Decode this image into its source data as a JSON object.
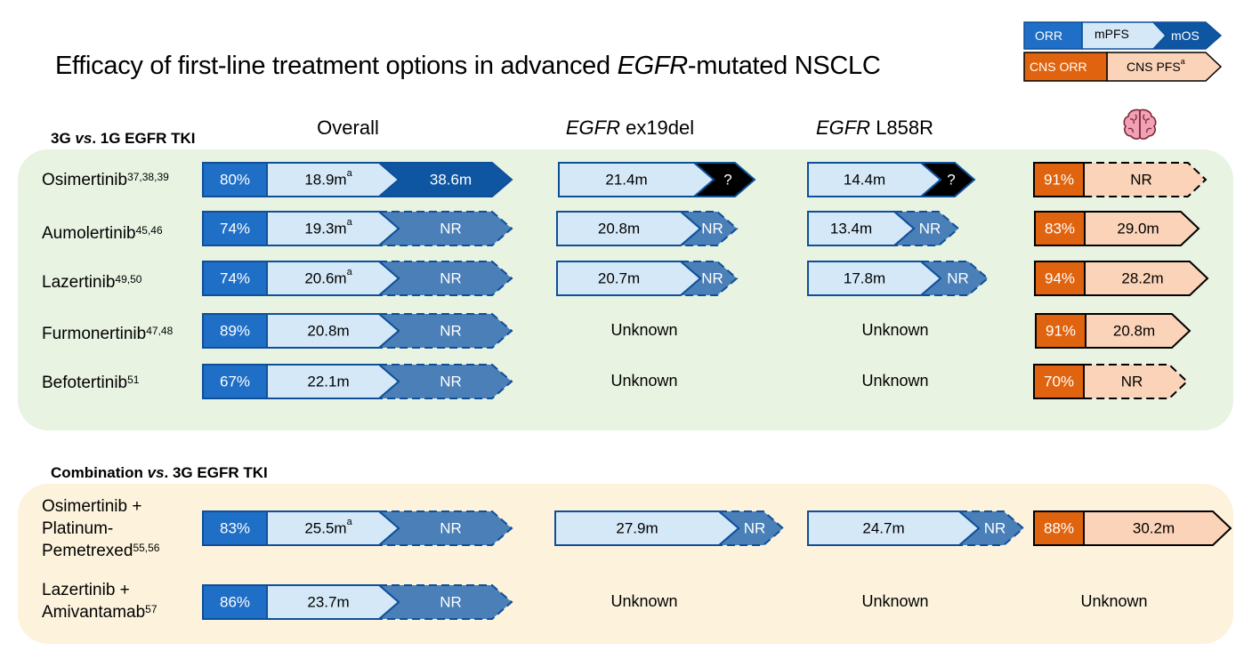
{
  "title": {
    "pre": "Efficacy of first-line treatment options in advanced ",
    "em": "EGFR",
    "post": "-mutated NSCLC"
  },
  "colors": {
    "orr": "#1f6fc6",
    "mpfs": "#d4e8f7",
    "mos": "#0e56a1",
    "mos_nr": "#4a7fb7",
    "unknown_os": "#000000",
    "cns_orr": "#e0640f",
    "cns_pfs": "#fbd3b8",
    "stroke": "#0e4f9a",
    "green_panel": "#e8f3e2",
    "yellow_panel": "#fdf3dc"
  },
  "legend": {
    "orr": "ORR",
    "mpfs": "mPFS",
    "mos": "mOS",
    "cns_orr": "CNS ORR",
    "cns_pfs": "CNS PFS",
    "cns_pfs_sup": "a"
  },
  "brain_icon": "brain-icon",
  "sections": {
    "s1": {
      "pre": "3G ",
      "em": "vs",
      "post": ". 1G EGFR TKI"
    },
    "s2": {
      "pre": "Combination ",
      "em": "vs",
      "post": ". 3G EGFR TKI"
    }
  },
  "columns": {
    "overall": "Overall",
    "ex19": {
      "em": "EGFR",
      "rest": " ex19del"
    },
    "l858": {
      "em": "EGFR",
      "rest": " L858R"
    }
  },
  "unknown_label": "Unknown",
  "rows": [
    {
      "drug": [
        "Osimertinib"
      ],
      "sup": "37,38,39",
      "overall": {
        "orr": "80%",
        "mpfs": "18.9m",
        "mpfs_sup": "a",
        "mos": "38.6m",
        "mos_nr": false
      },
      "ex19": {
        "pfs": "21.4m",
        "os": "?"
      },
      "l858": {
        "pfs": "14.4m",
        "os": "?"
      },
      "cns": {
        "orr": "91%",
        "pfs": "NR",
        "nr": true
      }
    },
    {
      "drug": [
        "Aumolertinib"
      ],
      "sup": "45,46",
      "overall": {
        "orr": "74%",
        "mpfs": "19.3m",
        "mpfs_sup": "a",
        "mos": "NR",
        "mos_nr": true
      },
      "ex19": {
        "pfs": "20.8m",
        "os": "NR"
      },
      "l858": {
        "pfs": "13.4m",
        "os": "NR"
      },
      "cns": {
        "orr": "83%",
        "pfs": "29.0m",
        "nr": false
      }
    },
    {
      "drug": [
        "Lazertinib"
      ],
      "sup": "49,50",
      "overall": {
        "orr": "74%",
        "mpfs": "20.6m",
        "mpfs_sup": "a",
        "mos": "NR",
        "mos_nr": true
      },
      "ex19": {
        "pfs": "20.7m",
        "os": "NR"
      },
      "l858": {
        "pfs": "17.8m",
        "os": "NR"
      },
      "cns": {
        "orr": "94%",
        "pfs": "28.2m",
        "nr": false
      }
    },
    {
      "drug": [
        "Furmonertinib"
      ],
      "sup": "47,48",
      "overall": {
        "orr": "89%",
        "mpfs": "20.8m",
        "mpfs_sup": "",
        "mos": "NR",
        "mos_nr": true
      },
      "ex19": null,
      "l858": null,
      "cns": {
        "orr": "91%",
        "pfs": "20.8m",
        "nr": false
      }
    },
    {
      "drug": [
        "Befotertinib"
      ],
      "sup": "51",
      "overall": {
        "orr": "67%",
        "mpfs": "22.1m",
        "mpfs_sup": "",
        "mos": "NR",
        "mos_nr": true
      },
      "ex19": null,
      "l858": null,
      "cns": {
        "orr": "70%",
        "pfs": "NR",
        "nr": true
      }
    },
    {
      "drug": [
        "Osimertinib +",
        "Platinum-",
        "Pemetrexed"
      ],
      "sup": "55,56",
      "overall": {
        "orr": "83%",
        "mpfs": "25.5m",
        "mpfs_sup": "a",
        "mos": "NR",
        "mos_nr": true
      },
      "ex19": {
        "pfs": "27.9m",
        "os": "NR"
      },
      "l858": {
        "pfs": "24.7m",
        "os": "NR"
      },
      "cns": {
        "orr": "88%",
        "pfs": "30.2m",
        "nr": false
      }
    },
    {
      "drug": [
        "Lazertinib +",
        "Amivantamab"
      ],
      "sup": "57",
      "overall": {
        "orr": "86%",
        "mpfs": "23.7m",
        "mpfs_sup": "",
        "mos": "NR",
        "mos_nr": true
      },
      "ex19": null,
      "l858": null,
      "cns": null
    }
  ]
}
